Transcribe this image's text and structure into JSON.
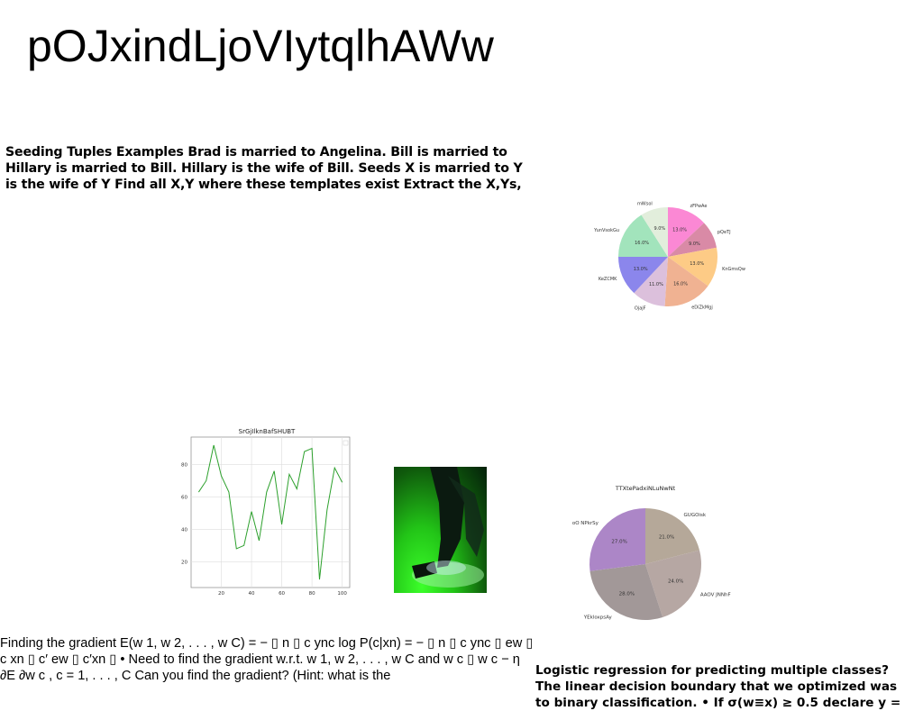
{
  "title": "pOJxindLjoVIytqlhAWw",
  "seeding_text": "Seeding Tuples Examples Brad is married to Angelina. Bill is married to Hillary is married to Bill. Hillary is the wife of Bill. Seeds X is married to Y is the wife of Y Find all X,Y where these templates exist Extract the X,Ys,",
  "gradient_text": "Finding the gradient E(w 1, w 2, . . . , w C) = − ▯ n ▯ c ync log P(c|xn) = − ▯ n ▯ c ync ▯ ew ▯ c xn ▯ c′ ew ▯ c′xn ▯ • Need to find the gradient w.r.t. w 1, w 2, . . . , w C and w c ▯ w c − η ∂E ∂w c , c = 1, . . . , C Can you find the gradient? (Hint: what is the",
  "logistic_text": "Logistic regression for predicting multiple classes? The linear decision boundary that we optimized was to binary classification. • If σ(w≡x) ≥ 0.5 declare y =",
  "chart_data": [
    {
      "type": "pie",
      "title": "",
      "labels": [
        "zFPwAe",
        "pQeTJ",
        "KnGmsQw",
        "eDiZkMgj",
        "OjajF",
        "KeZCMK",
        "YunVsokGu",
        "mWsol"
      ],
      "values": [
        13.0,
        9.0,
        13.0,
        16.0,
        11.0,
        13.0,
        16.0,
        9.0
      ],
      "pct_labels": [
        "13.0%",
        "9.0%",
        "13.0%",
        "16.0%",
        "11.0%",
        "13.0%",
        "16.0%",
        "9.0%"
      ],
      "colors": [
        "#fb88d4",
        "#d98aa6",
        "#fdcb86",
        "#f0b292",
        "#dcc0dc",
        "#8b86ec",
        "#a2e4bc",
        "#e2eedc"
      ]
    },
    {
      "type": "line",
      "title": "SrGjIlknBafSHUBT",
      "x": [
        5,
        10,
        15,
        20,
        25,
        30,
        35,
        40,
        45,
        50,
        55,
        60,
        65,
        70,
        75,
        80,
        85,
        90,
        95,
        100
      ],
      "y": [
        63,
        70,
        92,
        73,
        63,
        28,
        30,
        51,
        33,
        63,
        76,
        43,
        74,
        65,
        88,
        90,
        9,
        52,
        78,
        69
      ],
      "xticks": [
        20,
        40,
        60,
        80,
        100
      ],
      "yticks": [
        20,
        40,
        60,
        80
      ],
      "xlim": [
        0,
        105
      ],
      "ylim": [
        4,
        97
      ],
      "grid": true,
      "color": "#2ca02c"
    },
    {
      "type": "pie",
      "title": "TTXtePadxiNLuNwNt",
      "labels": [
        "GUGOisk",
        "AAOV JNNhF",
        "YEkloxpsAy",
        "oO NPkrSy"
      ],
      "values": [
        21.0,
        24.0,
        28.0,
        27.0
      ],
      "pct_labels": [
        "21.0%",
        "24.0%",
        "28.0%",
        "27.0%"
      ],
      "colors": [
        "#b5a899",
        "#b6a7a3",
        "#a29898",
        "#ac86c7"
      ]
    }
  ]
}
